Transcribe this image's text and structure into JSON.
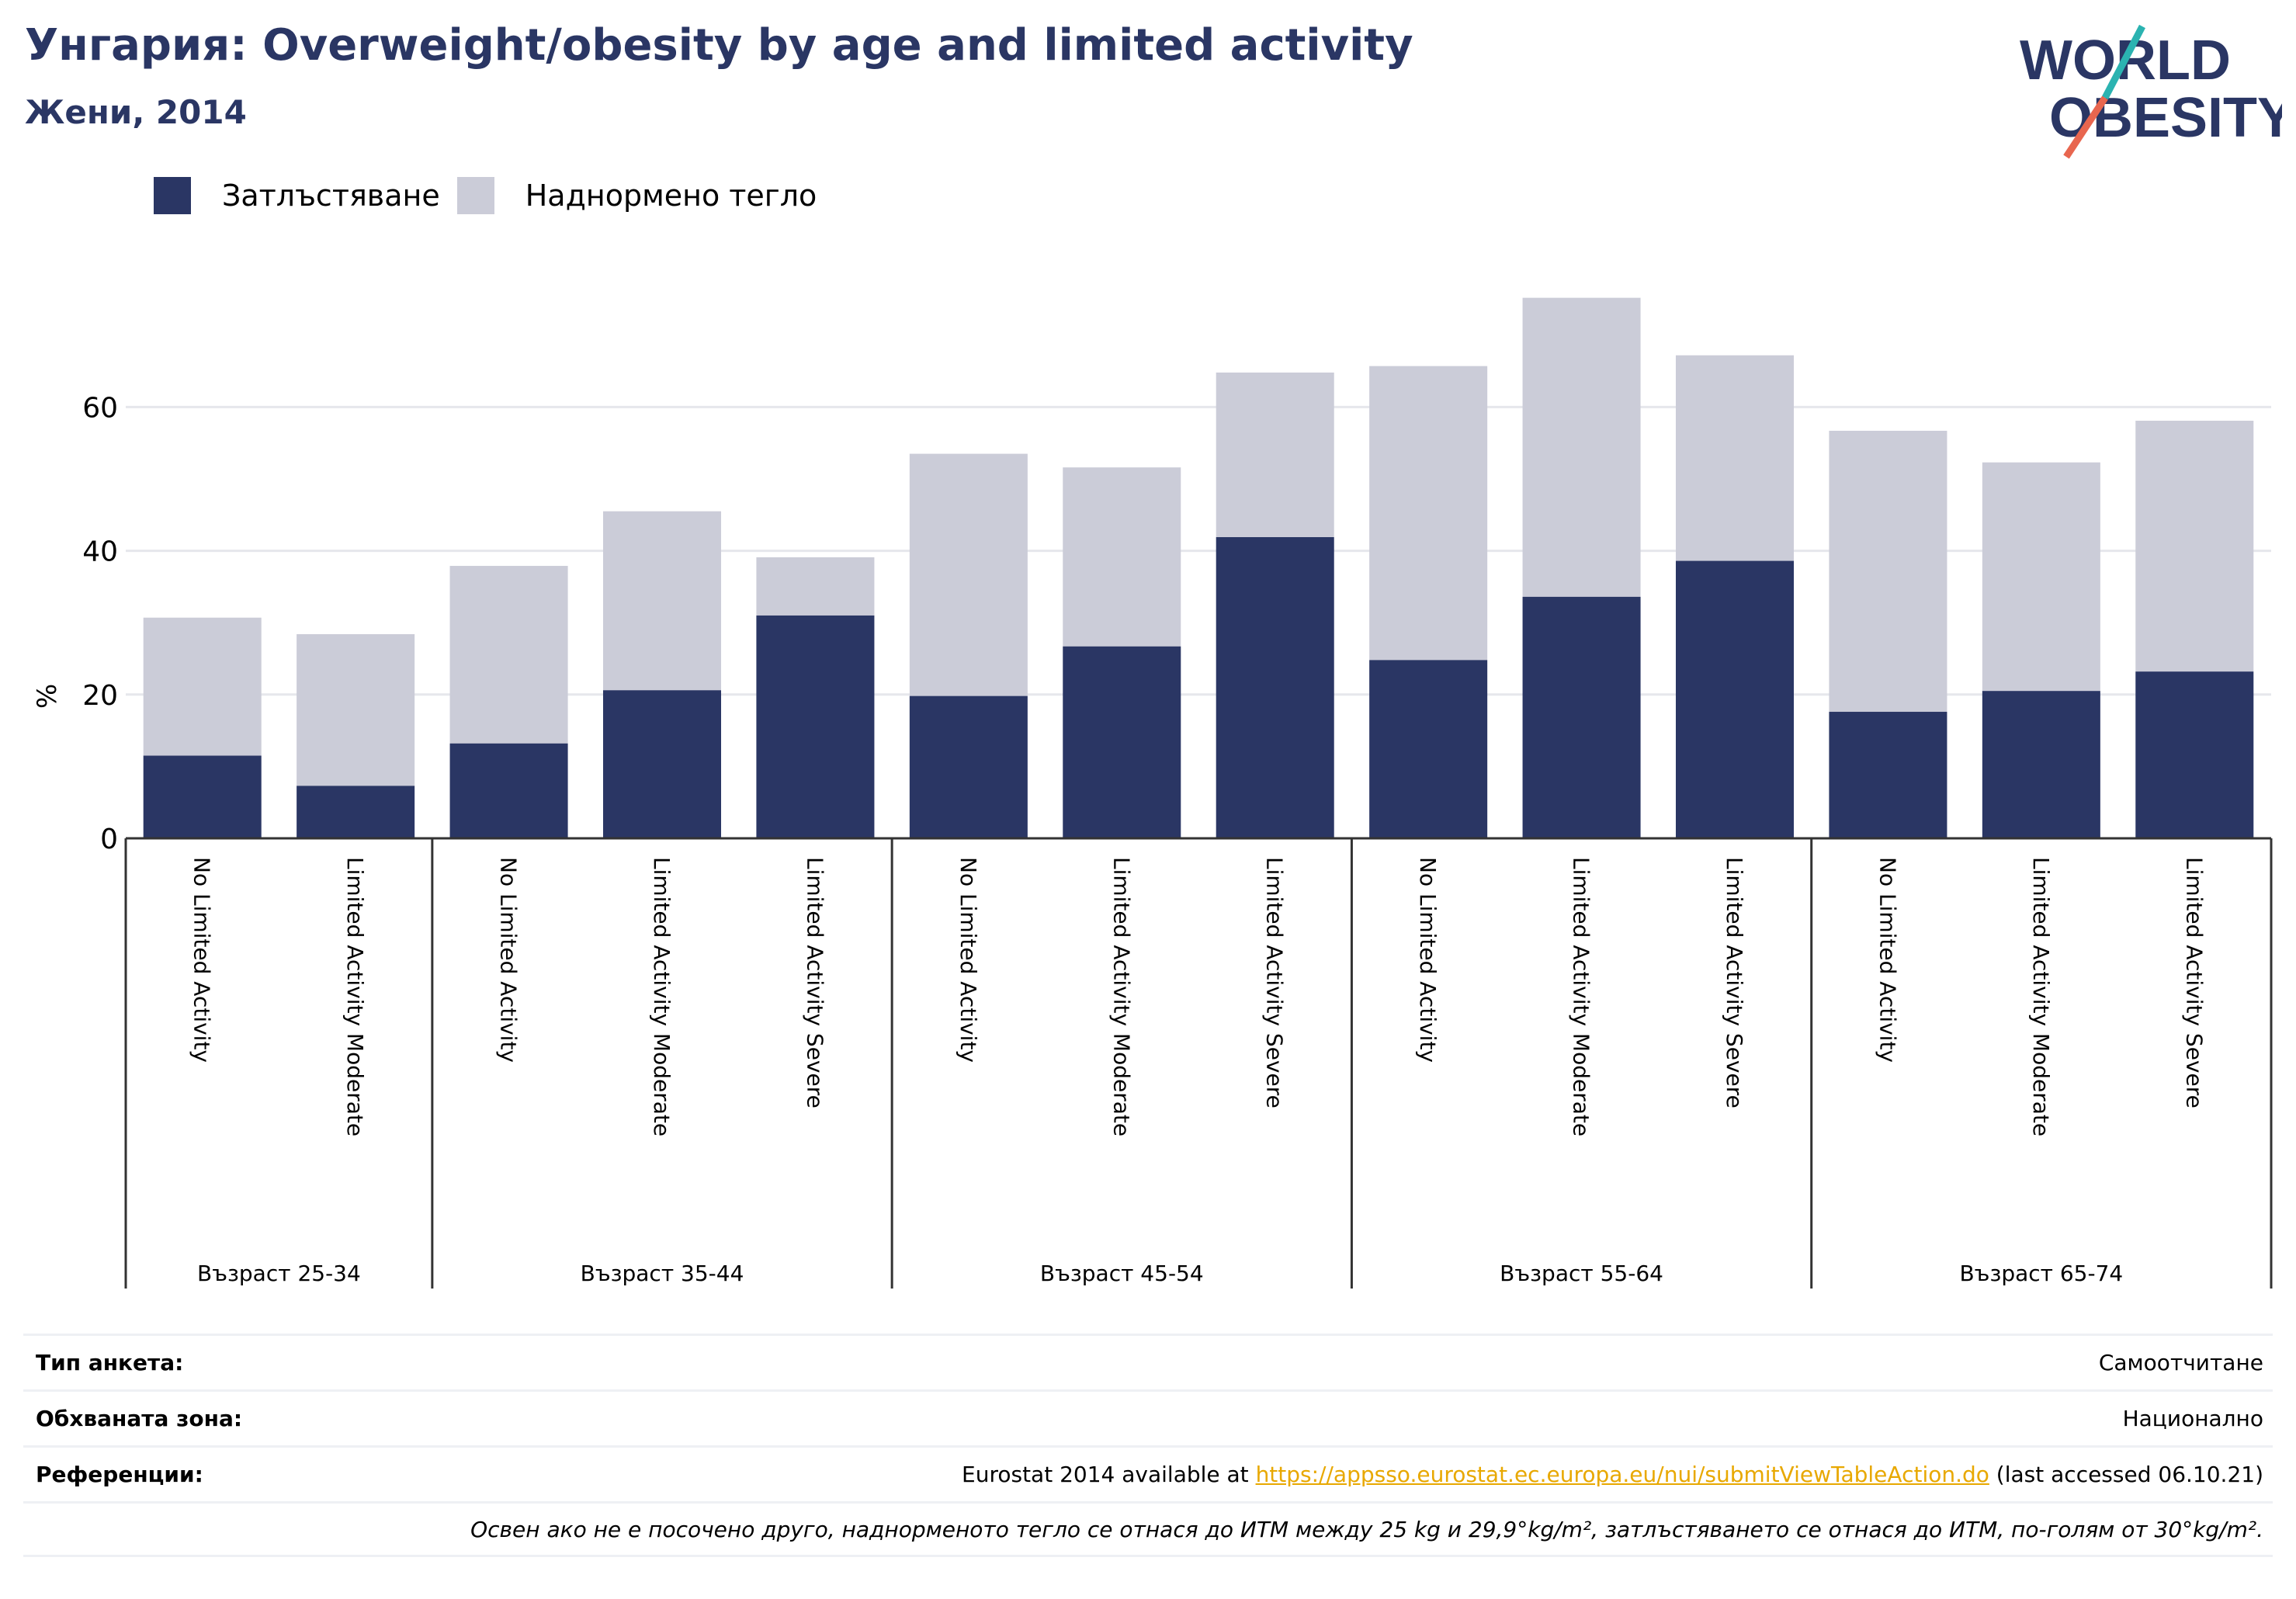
{
  "header": {
    "title": "Унгария: Overweight/obesity by age and limited activity",
    "subtitle": "Жени, 2014"
  },
  "logo": {
    "line1": "WORLD",
    "line2": "OBESITY"
  },
  "colors": {
    "obesity": "#2a3664",
    "overweight": "#cbccd8",
    "title": "#2a3664",
    "link": "#e8a800",
    "accent_teal": "#2bb3b1",
    "accent_red": "#e8664f"
  },
  "chart_data": {
    "type": "bar",
    "stacked": true,
    "ylabel": "%",
    "ylim": [
      0,
      78
    ],
    "yticks": [
      0,
      20,
      40,
      60
    ],
    "grid": true,
    "legend_position": "top-left",
    "series": [
      {
        "name": "Затлъстяване",
        "values": [
          11.5,
          7.3,
          13.2,
          20.6,
          31.0,
          19.8,
          26.7,
          41.9,
          24.8,
          33.6,
          38.6,
          17.6,
          20.5,
          23.2
        ]
      },
      {
        "name": "Наднормено тегло",
        "values": [
          19.2,
          21.1,
          24.7,
          24.9,
          8.1,
          33.7,
          24.9,
          22.9,
          40.9,
          41.6,
          28.6,
          39.1,
          31.8,
          34.9
        ]
      }
    ],
    "categories": [
      "No Limited Activity",
      "Limited Activity Moderate",
      "No Limited Activity",
      "Limited Activity Moderate",
      "Limited Activity Severe",
      "No Limited Activity",
      "Limited Activity Moderate",
      "Limited Activity Severe",
      "No Limited Activity",
      "Limited Activity Moderate",
      "Limited Activity Severe",
      "No Limited Activity",
      "Limited Activity Moderate",
      "Limited Activity Severe"
    ],
    "groups": [
      {
        "label": "Възраст 25-34",
        "count": 2
      },
      {
        "label": "Възраст 35-44",
        "count": 3
      },
      {
        "label": "Възраст 45-54",
        "count": 3
      },
      {
        "label": "Възраст 55-64",
        "count": 3
      },
      {
        "label": "Възраст 65-74",
        "count": 3
      }
    ]
  },
  "info": {
    "survey_type_label": "Тип анкета:",
    "survey_type_value": "Самоотчитане",
    "coverage_label": "Обхваната зона:",
    "coverage_value": "Национално",
    "references_label": "Референции:",
    "references_prefix": "Eurostat 2014 available at ",
    "references_link": "https://appsso.eurostat.ec.europa.eu/nui/submitViewTableAction.do",
    "references_suffix": " (last accessed 06.10.21)",
    "note": "Освен ако не е посочено друго, наднорменото тегло се отнася до ИТМ между 25 kg и 29,9°kg/m², затлъстяването се отнася до ИТМ, по-голям от 30°kg/m²."
  }
}
